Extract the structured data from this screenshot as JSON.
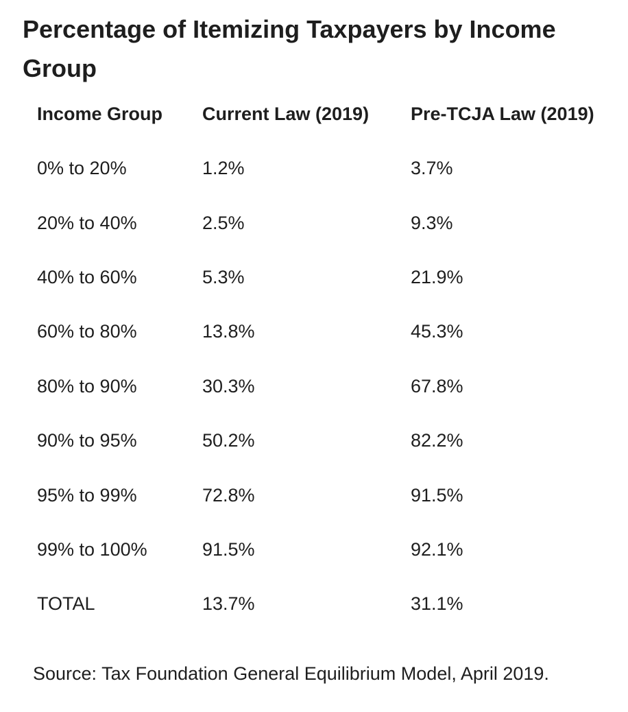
{
  "title": "Percentage of Itemizing Taxpayers by Income Group",
  "table": {
    "headers": [
      "Income Group",
      "Current Law (2019)",
      "Pre-TCJA Law (2019)"
    ],
    "rows": [
      [
        "0% to 20%",
        "1.2%",
        "3.7%"
      ],
      [
        "20% to 40%",
        "2.5%",
        "9.3%"
      ],
      [
        "40% to 60%",
        "5.3%",
        "21.9%"
      ],
      [
        "60% to 80%",
        "13.8%",
        "45.3%"
      ],
      [
        "80% to 90%",
        "30.3%",
        "67.8%"
      ],
      [
        "90% to 95%",
        "50.2%",
        "82.2%"
      ],
      [
        "95% to 99%",
        "72.8%",
        "91.5%"
      ],
      [
        "99% to 100%",
        "91.5%",
        "92.1%"
      ],
      [
        "TOTAL",
        "13.7%",
        "31.1%"
      ]
    ]
  },
  "source": "Source: Tax Foundation General Equilibrium Model, April 2019."
}
